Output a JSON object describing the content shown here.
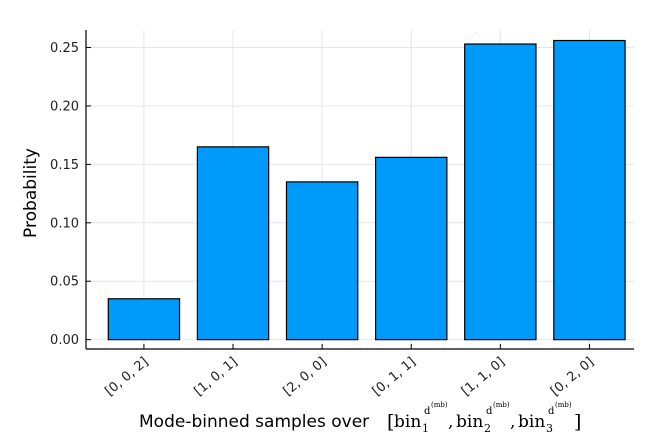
{
  "chart_data": {
    "type": "bar",
    "categories": [
      "[0, 0, 2]",
      "[1, 0, 1]",
      "[2, 0, 0]",
      "[0, 1, 1]",
      "[1, 1, 0]",
      "[0, 2, 0]"
    ],
    "values": [
      0.035,
      0.165,
      0.135,
      0.156,
      0.253,
      0.256
    ],
    "title": "",
    "xlabel": "Mode-binned samples over",
    "xlabel_math": {
      "bin": "bin",
      "sup": "d",
      "supsup": "(mb)",
      "subs": [
        "1",
        "2",
        "3"
      ],
      "open": "[",
      "close": "]",
      "sep": ","
    },
    "ylabel": "Probability",
    "ylim": [
      -0.008,
      0.265
    ],
    "yticks": [
      0.0,
      0.05,
      0.1,
      0.15,
      0.2,
      0.25
    ],
    "ytick_labels": [
      "0.00",
      "0.05",
      "0.10",
      "0.15",
      "0.20",
      "0.25"
    ],
    "grid": true,
    "legend": "none",
    "bar_color": "#009AFA",
    "bar_edge_color": "#000000"
  }
}
